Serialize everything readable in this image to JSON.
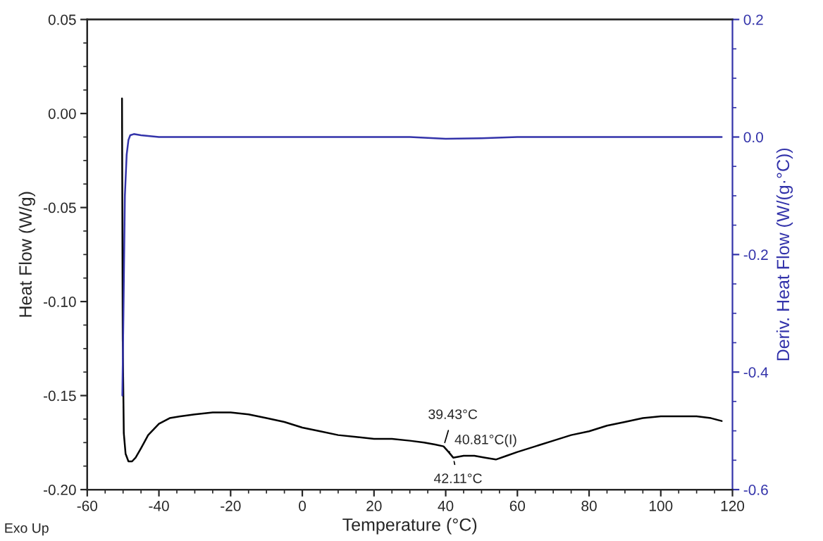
{
  "chart_data": {
    "type": "line",
    "xlabel": "Temperature (°C)",
    "ylabel": "Heat Flow (W/g)",
    "y2label": "Deriv. Heat Flow (W/(g·°C))",
    "xlim": [
      -60,
      120
    ],
    "xticks": [
      -60,
      -40,
      -20,
      0,
      20,
      40,
      60,
      80,
      100,
      120
    ],
    "ylim": [
      -0.2,
      0.05
    ],
    "yticks": [
      {
        "value": -0.2,
        "label": "-0.20"
      },
      {
        "value": -0.15,
        "label": "-0.15"
      },
      {
        "value": -0.1,
        "label": "-0.10"
      },
      {
        "value": -0.05,
        "label": "-0.05"
      },
      {
        "value": 0.0,
        "label": "0.00"
      },
      {
        "value": 0.05,
        "label": "0.05"
      }
    ],
    "y2lim": [
      -0.6,
      0.2
    ],
    "y2ticks": [
      {
        "value": -0.6,
        "label": "-0.6"
      },
      {
        "value": -0.4,
        "label": "-0.4"
      },
      {
        "value": -0.2,
        "label": "-0.2"
      },
      {
        "value": 0.0,
        "label": "0.0"
      },
      {
        "value": 0.2,
        "label": "0.2"
      }
    ],
    "grid": false,
    "marker": "none",
    "line_style": "solid",
    "series": [
      {
        "color": "#000000",
        "x": [
          -50.3,
          -50.1,
          -49.8,
          -49.3,
          -48.5,
          -47.5,
          -46.5,
          -45,
          -43,
          -40,
          -37,
          -34,
          -30,
          -25,
          -20,
          -15,
          -10,
          -5,
          0,
          5,
          10,
          15,
          20,
          25,
          30,
          34,
          37,
          39.4,
          40.8,
          42.1,
          45,
          48,
          51,
          54,
          57,
          60,
          65,
          70,
          75,
          80,
          85,
          90,
          95,
          100,
          105,
          110,
          114,
          117
        ],
        "values": [
          0.008,
          -0.12,
          -0.17,
          -0.181,
          -0.185,
          -0.185,
          -0.183,
          -0.178,
          -0.171,
          -0.165,
          -0.162,
          -0.161,
          -0.16,
          -0.159,
          -0.159,
          -0.16,
          -0.162,
          -0.164,
          -0.167,
          -0.169,
          -0.171,
          -0.172,
          -0.173,
          -0.173,
          -0.174,
          -0.175,
          -0.176,
          -0.177,
          -0.18,
          -0.183,
          -0.182,
          -0.182,
          -0.183,
          -0.184,
          -0.182,
          -0.18,
          -0.177,
          -0.174,
          -0.171,
          -0.169,
          -0.166,
          -0.164,
          -0.162,
          -0.161,
          -0.161,
          -0.161,
          -0.162,
          -0.1635
        ]
      },
      {
        "color": "#3333aa",
        "axis": "y2",
        "x": [
          -50.2,
          -49.9,
          -49.5,
          -49,
          -48.5,
          -48,
          -47,
          -45,
          -40,
          -30,
          -20,
          -10,
          0,
          10,
          20,
          30,
          40,
          50,
          60,
          70,
          80,
          90,
          100,
          110,
          117
        ],
        "values": [
          -0.44,
          -0.3,
          -0.1,
          -0.03,
          -0.005,
          0.003,
          0.005,
          0.003,
          0.0,
          0.0,
          0.0,
          0.0,
          0.0,
          0.0,
          0.0,
          0.0,
          -0.003,
          -0.002,
          0.0,
          0.0,
          0.0,
          0.0,
          0.0,
          0.0,
          0.0
        ]
      }
    ],
    "annotations": [
      {
        "text": "39.43°C",
        "x": 39.43,
        "y": -0.177
      },
      {
        "text": "40.81°C(I)",
        "x": 40.81,
        "y": -0.18
      },
      {
        "text": "42.11°C",
        "x": 42.11,
        "y": -0.183
      },
      "Exo Up"
    ]
  }
}
